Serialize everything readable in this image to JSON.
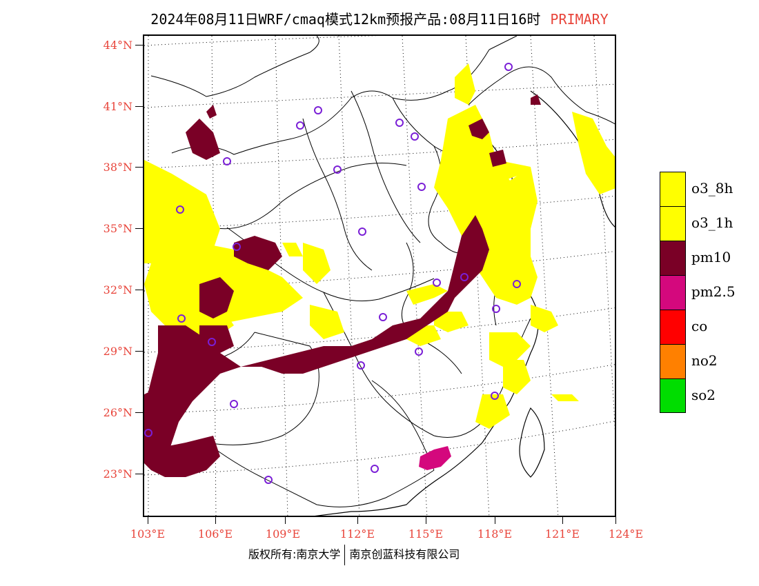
{
  "title": {
    "main": "2024年08月11日WRF/cmaq模式12km预报产品:08月11日16时",
    "tag": "PRIMARY"
  },
  "axes": {
    "lat_labels": [
      "44°N",
      "41°N",
      "38°N",
      "35°N",
      "32°N",
      "29°N",
      "26°N",
      "23°N"
    ],
    "lon_labels": [
      "103°E",
      "106°E",
      "109°E",
      "112°E",
      "115°E",
      "118°E",
      "121°E",
      "124°E"
    ]
  },
  "legend": [
    {
      "label": "o3_8h",
      "color": "#ffff00"
    },
    {
      "label": "o3_1h",
      "color": "#ffff00"
    },
    {
      "label": "pm10",
      "color": "#7a0026"
    },
    {
      "label": "pm2.5",
      "color": "#d4087d"
    },
    {
      "label": "co",
      "color": "#ff0000"
    },
    {
      "label": "no2",
      "color": "#ff8000"
    },
    {
      "label": "so2",
      "color": "#00dd00"
    }
  ],
  "footer": {
    "left": "版权所有:南京大学",
    "right": "南京创蓝科技有限公司"
  },
  "colors": {
    "label_red": "#e8443a",
    "station_marker": "#7a1fd6",
    "grid": "#000000"
  }
}
